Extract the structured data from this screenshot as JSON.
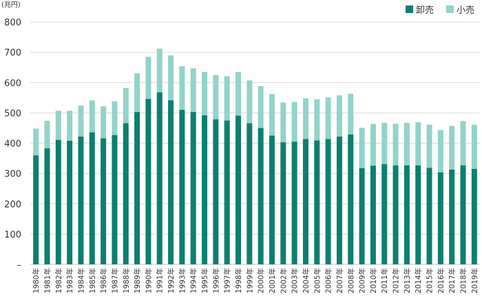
{
  "chart_data": {
    "type": "bar",
    "stacked": true,
    "unit_label": "(兆円)",
    "ylim": [
      0,
      800
    ],
    "yticks": [
      "–",
      "100",
      "200",
      "300",
      "400",
      "500",
      "600",
      "700",
      "800"
    ],
    "grid": true,
    "legend_position": "top-right",
    "categories": [
      "1980年",
      "1981年",
      "1982年",
      "1983年",
      "1984年",
      "1985年",
      "1986年",
      "1987年",
      "1988年",
      "1989年",
      "1990年",
      "1991年",
      "1992年",
      "1993年",
      "1994年",
      "1995年",
      "1996年",
      "1997年",
      "1998年",
      "1999年",
      "2000年",
      "2001年",
      "2002年",
      "2003年",
      "2004年",
      "2005年",
      "2006年",
      "2007年",
      "2008年",
      "2009年",
      "2010年",
      "2011年",
      "2012年",
      "2013年",
      "2014年",
      "2015年",
      "2016年",
      "2017年",
      "2018年",
      "2019年"
    ],
    "series": [
      {
        "name": "卸売",
        "color": "#0d7f6f",
        "values": [
          360,
          383,
          411,
          408,
          422,
          436,
          416,
          427,
          466,
          503,
          546,
          568,
          542,
          510,
          503,
          492,
          479,
          475,
          491,
          466,
          450,
          425,
          403,
          405,
          414,
          409,
          414,
          422,
          429,
          318,
          326,
          331,
          327,
          327,
          327,
          319,
          304,
          313,
          327,
          315
        ]
      },
      {
        "name": "小売",
        "color": "#93d3c9",
        "values": [
          88,
          91,
          96,
          99,
          102,
          105,
          106,
          111,
          116,
          128,
          139,
          144,
          148,
          144,
          144,
          143,
          146,
          146,
          144,
          141,
          138,
          137,
          131,
          131,
          134,
          136,
          137,
          136,
          134,
          133,
          137,
          136,
          137,
          140,
          142,
          142,
          139,
          144,
          146,
          146
        ]
      }
    ]
  }
}
